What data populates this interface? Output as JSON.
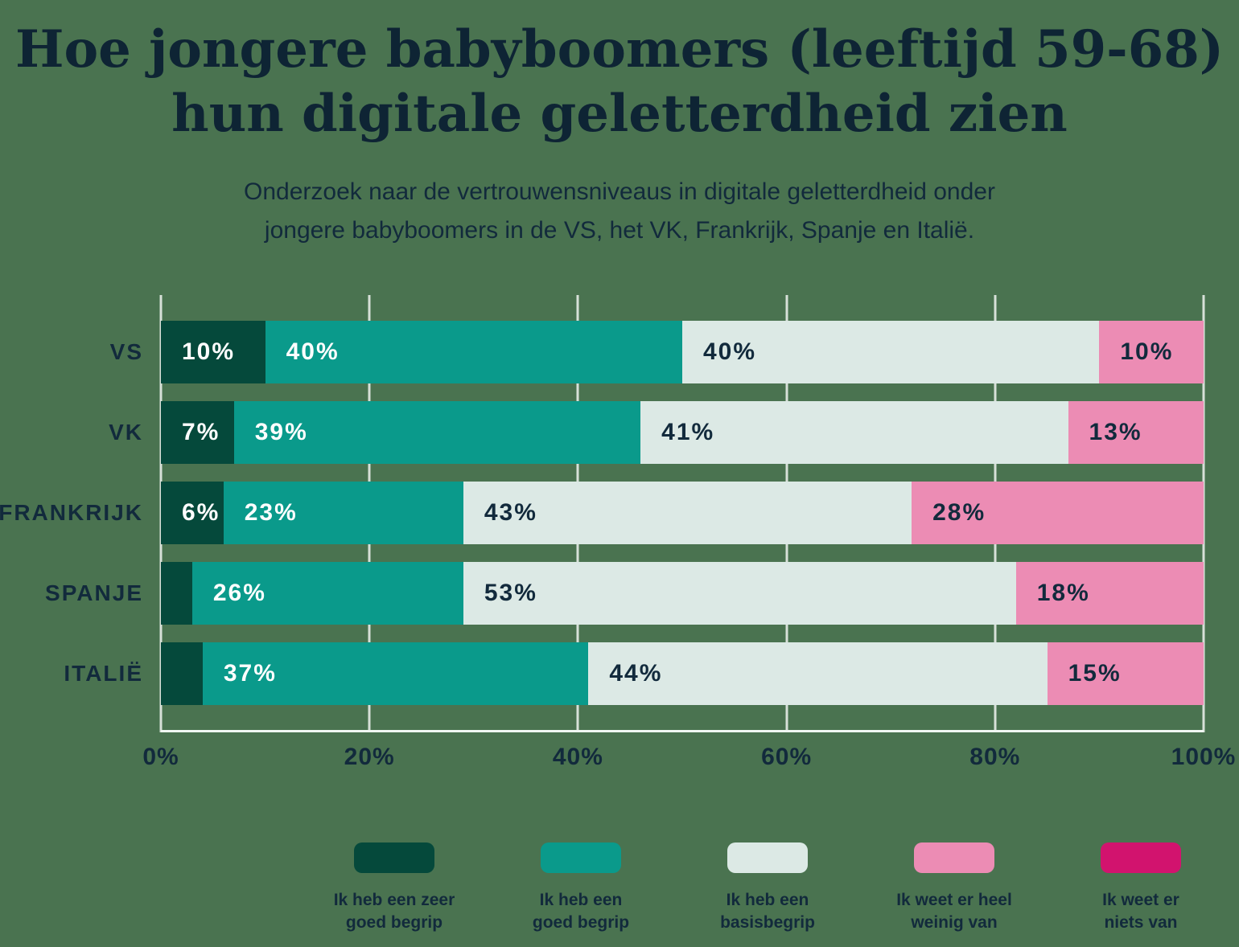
{
  "page": {
    "title_line1": "Hoe jongere babyboomers (leeftijd 59-68)",
    "title_line2": "hun digitale geletterdheid zien",
    "subtitle_line1": "Onderzoek naar de vertrouwensniveaus in digitale geletterdheid onder",
    "subtitle_line2": "jongere babyboomers in de VS, het VK, Frankrijk, Spanje en Italië."
  },
  "colors": {
    "background": "#4A7350",
    "text_navy": "#122A3C",
    "title_navy": "#0E2434",
    "gridline": "rgba(255,255,255,0.78)",
    "baseline": "#F0F6F2"
  },
  "chart_data": {
    "type": "bar",
    "orientation": "horizontal-stacked",
    "title": "Hoe jongere babyboomers (leeftijd 59-68) hun digitale geletterdheid zien",
    "subtitle": "Onderzoek naar de vertrouwensniveaus in digitale geletterdheid onder jongere babyboomers in de VS, het VK, Frankrijk, Spanje en Italië.",
    "categories": [
      "VS",
      "VK",
      "FRANKRIJK",
      "SPANJE",
      "ITALIË"
    ],
    "series": [
      {
        "name": "Ik heb een zeer goed begrip",
        "color": "#05493B",
        "label_color": "#FFFFFF",
        "values": [
          10,
          7,
          6,
          3,
          4
        ],
        "legend_lines": [
          "Ik heb een zeer",
          "goed begrip"
        ]
      },
      {
        "name": "Ik heb een goed begrip",
        "color": "#0A9A8B",
        "label_color": "#FFFFFF",
        "values": [
          40,
          39,
          23,
          26,
          37
        ],
        "legend_lines": [
          "Ik heb een",
          "goed begrip"
        ]
      },
      {
        "name": "Ik heb een basisbegrip",
        "color": "#DCE9E5",
        "label_color": "#122A3C",
        "values": [
          40,
          41,
          43,
          53,
          44
        ],
        "legend_lines": [
          "Ik heb een",
          "basisbegrip"
        ]
      },
      {
        "name": "Ik weet er heel weinig van",
        "color": "#EC8CB4",
        "label_color": "#122A3C",
        "values": [
          10,
          13,
          28,
          18,
          15
        ],
        "legend_lines": [
          "Ik weet er heel",
          "weinig van"
        ]
      },
      {
        "name": "Ik weet er niets van",
        "color": "#D2136E",
        "label_color": "#122A3C",
        "values": [
          0,
          0,
          0,
          0,
          0
        ],
        "legend_lines": [
          "Ik weet er",
          "niets van"
        ]
      }
    ],
    "x_ticks": [
      "0%",
      "20%",
      "40%",
      "60%",
      "80%",
      "100%"
    ],
    "x_tick_values": [
      0,
      20,
      40,
      60,
      80,
      100
    ],
    "xlim": [
      0,
      100
    ],
    "value_suffix": "%",
    "label_min_value": 6,
    "grid": true,
    "legend_position": "bottom"
  }
}
